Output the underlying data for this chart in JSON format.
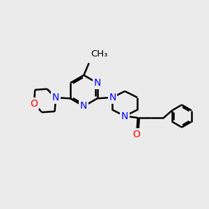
{
  "bg_color": "#ebebeb",
  "N_color": "#0000ff",
  "O_color": "#ff0000",
  "bond_color": "#000000",
  "bond_width": 1.8,
  "font_size": 10,
  "fig_size": [
    3.0,
    3.0
  ],
  "dpi": 100,
  "xlim": [
    0,
    12
  ],
  "ylim": [
    0,
    10
  ]
}
